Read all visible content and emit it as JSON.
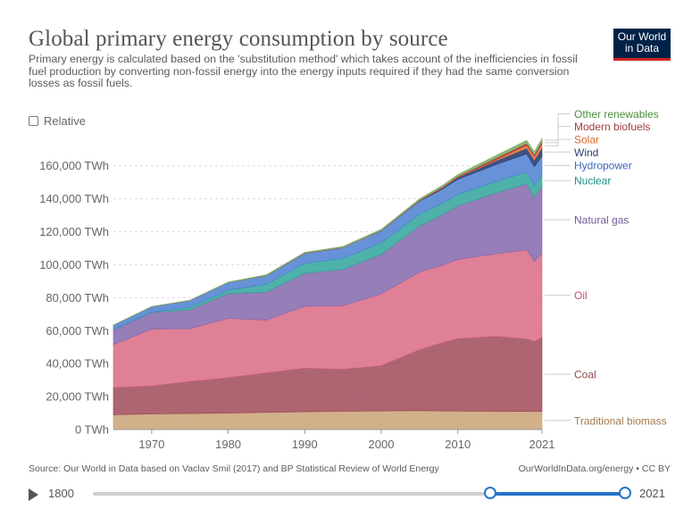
{
  "header": {
    "title": "Global primary energy consumption by source",
    "subtitle": "Primary energy is calculated based on the 'substitution method' which takes account of the inefficiencies in fossil fuel production by converting non-fossil energy into the energy inputs required if they had the same conversion losses as fossil fuels.",
    "logo_line1": "Our World",
    "logo_line2": "in Data",
    "logo_bg": "#002147",
    "logo_accent": "#ce261e"
  },
  "controls": {
    "relative_label": "Relative",
    "relative_checked": false
  },
  "footer": {
    "source": "Source: Our World in Data based on Vaclav Smil (2017) and BP Statistical Review of World Energy",
    "credit": "OurWorldInData.org/energy • CC BY"
  },
  "timeline": {
    "start_label": "1800",
    "end_label": "2021",
    "range_min": 1800,
    "range_max": 2021,
    "selected_start": 1965,
    "selected_end": 2021,
    "accent": "#2574ca"
  },
  "chart_data": {
    "type": "area",
    "stacked": true,
    "x": [
      1965,
      1970,
      1975,
      1980,
      1985,
      1990,
      1995,
      2000,
      2005,
      2008,
      2010,
      2015,
      2019,
      2020,
      2021
    ],
    "ylim": [
      0,
      175000
    ],
    "yticks": [
      0,
      20000,
      40000,
      60000,
      80000,
      100000,
      120000,
      140000,
      160000
    ],
    "ytick_labels": [
      "0 TWh",
      "20,000 TWh",
      "40,000 TWh",
      "60,000 TWh",
      "80,000 TWh",
      "100,000 TWh",
      "120,000 TWh",
      "140,000 TWh",
      "160,000 TWh"
    ],
    "xticks": [
      1970,
      1980,
      1990,
      2000,
      2010,
      2021
    ],
    "xtick_labels": [
      "1970",
      "1980",
      "1990",
      "2000",
      "2010",
      "2021"
    ],
    "grid": "horizontal",
    "legend": "right",
    "series": [
      {
        "name": "Traditional biomass",
        "color": "#c9a275",
        "label_color": "#a07a4e",
        "opacity": 0.85,
        "values": [
          9000,
          9500,
          9700,
          10000,
          10400,
          10800,
          11100,
          11300,
          11500,
          11300,
          11200,
          11100,
          11000,
          11000,
          11000
        ]
      },
      {
        "name": "Coal",
        "color": "#9a3f4f",
        "label_color": "#8a4a4a",
        "opacity": 0.8,
        "values": [
          16500,
          17000,
          19500,
          21500,
          24000,
          26500,
          25500,
          27500,
          37000,
          41500,
          44000,
          45500,
          44000,
          42500,
          45000
        ]
      },
      {
        "name": "Oil",
        "color": "#d96a85",
        "label_color": "#c14f6b",
        "opacity": 0.85,
        "values": [
          26000,
          34500,
          32000,
          36000,
          32000,
          37500,
          38500,
          43500,
          47000,
          47000,
          48000,
          50000,
          54000,
          48500,
          51000
        ]
      },
      {
        "name": "Natural gas",
        "color": "#8467ad",
        "label_color": "#6d5a99",
        "opacity": 0.85,
        "values": [
          9000,
          10000,
          11500,
          15000,
          17000,
          20000,
          22000,
          24000,
          28000,
          30500,
          32500,
          37000,
          40000,
          39000,
          40500
        ]
      },
      {
        "name": "Nuclear",
        "color": "#2fa59b",
        "label_color": "#1d8f85",
        "opacity": 0.85,
        "values": [
          200,
          300,
          1600,
          2000,
          4800,
          6100,
          6700,
          7000,
          7200,
          7000,
          7000,
          6800,
          7200,
          7000,
          7100
        ]
      },
      {
        "name": "Hydropower",
        "color": "#4c7fd0",
        "label_color": "#3b67b8",
        "opacity": 0.85,
        "values": [
          2600,
          3200,
          4000,
          4700,
          5200,
          6000,
          6600,
          7300,
          7900,
          8600,
          9100,
          10400,
          11000,
          11500,
          11300
        ]
      },
      {
        "name": "Wind",
        "color": "#2d3e73",
        "label_color": "#2d3e73",
        "opacity": 0.9,
        "values": [
          0,
          0,
          0,
          0,
          0,
          0,
          0,
          100,
          200,
          600,
          1000,
          2300,
          3500,
          4000,
          4900
        ]
      },
      {
        "name": "Solar",
        "color": "#e07b39",
        "label_color": "#d96a2c",
        "opacity": 0.9,
        "values": [
          0,
          0,
          0,
          0,
          0,
          0,
          0,
          0,
          0,
          100,
          100,
          700,
          1800,
          2200,
          2700
        ]
      },
      {
        "name": "Modern biofuels",
        "color": "#b5303c",
        "label_color": "#9e3b3b",
        "opacity": 0.9,
        "values": [
          0,
          0,
          0,
          0,
          100,
          100,
          100,
          100,
          300,
          500,
          600,
          900,
          1100,
          1000,
          1100
        ]
      },
      {
        "name": "Other renewables",
        "color": "#7dae6a",
        "label_color": "#4c8a3d",
        "opacity": 0.9,
        "values": [
          100,
          200,
          200,
          300,
          400,
          500,
          600,
          700,
          900,
          1100,
          1200,
          1600,
          1900,
          1900,
          2000
        ]
      }
    ]
  }
}
